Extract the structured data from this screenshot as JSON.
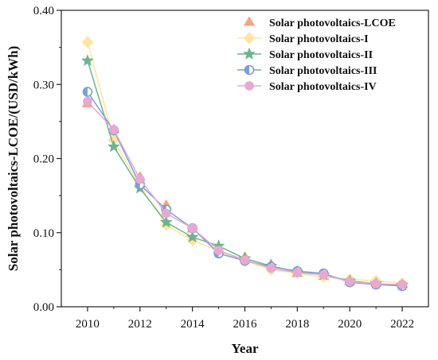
{
  "chart_data": {
    "type": "line",
    "xlabel": "Year",
    "ylabel": "Solar photovoltaics-LCOE/(USD/kWh)",
    "xlim": [
      2009,
      2023
    ],
    "ylim": [
      0,
      0.4
    ],
    "x_ticks": [
      "2010",
      "2012",
      "2014",
      "2016",
      "2018",
      "2020",
      "2022"
    ],
    "y_ticks": [
      "0.00",
      "0.10",
      "0.20",
      "0.30",
      "0.40"
    ],
    "grid": false,
    "legend_position": "top-right",
    "x": [
      2010,
      2011,
      2012,
      2013,
      2014,
      2015,
      2016,
      2017,
      2018,
      2019,
      2020,
      2021,
      2022
    ],
    "series": [
      {
        "name": "Solar photovoltaics-LCOE",
        "marker": "triangle",
        "line": false,
        "color": "#F4A582",
        "values": [
          0.274,
          0.239,
          0.175,
          0.137,
          0.105,
          0.078,
          0.067,
          0.057,
          0.045,
          0.041,
          0.034,
          0.032,
          0.03
        ]
      },
      {
        "name": "Solar photovoltaics-I",
        "marker": "diamond",
        "line": true,
        "color": "#FFE4A0",
        "values": [
          0.357,
          0.225,
          0.163,
          0.11,
          0.09,
          0.075,
          0.062,
          0.05,
          0.045,
          0.04,
          0.037,
          0.035,
          0.032
        ]
      },
      {
        "name": "Solar photovoltaics-II",
        "marker": "star",
        "line": true,
        "color": "#6DB48E",
        "values": [
          0.332,
          0.216,
          0.16,
          0.114,
          0.094,
          0.082,
          0.065,
          0.055,
          0.047,
          0.043,
          0.035,
          0.031,
          0.029
        ]
      },
      {
        "name": "Solar photovoltaics-III",
        "marker": "half-circle",
        "line": true,
        "color": "#7BA0D4",
        "values": [
          0.29,
          0.238,
          0.165,
          0.131,
          0.106,
          0.072,
          0.062,
          0.054,
          0.048,
          0.045,
          0.033,
          0.03,
          0.028
        ]
      },
      {
        "name": "Solar photovoltaics-IV",
        "marker": "circle",
        "line": true,
        "color": "#E8A8D0",
        "values": [
          0.277,
          0.239,
          0.172,
          0.126,
          0.106,
          0.076,
          0.063,
          0.052,
          0.046,
          0.043,
          0.034,
          0.031,
          0.03
        ]
      }
    ]
  }
}
